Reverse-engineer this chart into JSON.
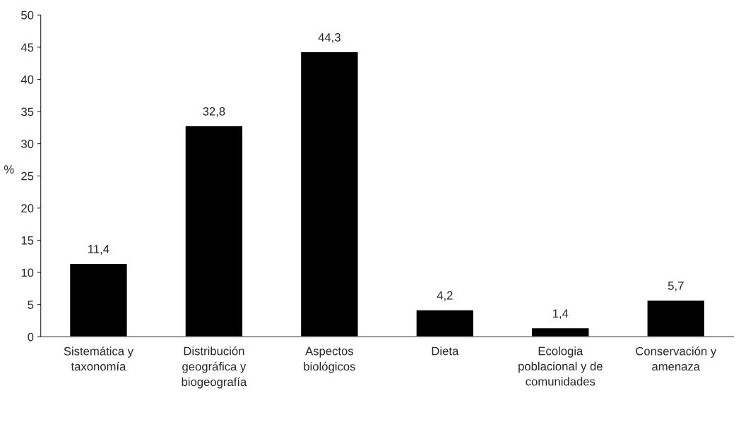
{
  "chart_data": {
    "type": "bar",
    "ylabel": "%",
    "categories": [
      "Sistemática y taxonomía",
      "Distribución geográfica y biogeografía",
      "Aspectos biológicos",
      "Dieta",
      "Ecologia poblacional y de comunidades",
      "Conservación y amenaza"
    ],
    "values": [
      11.4,
      32.8,
      44.3,
      4.2,
      1.4,
      5.7
    ],
    "value_labels": [
      "11,4",
      "32,8",
      "44,3",
      "4,2",
      "1,4",
      "5,7"
    ],
    "color": "#000000",
    "ylim": [
      0,
      50
    ],
    "yticks": [
      0,
      5,
      10,
      15,
      20,
      25,
      30,
      35,
      40,
      45,
      50
    ],
    "grid": false,
    "legend": false
  }
}
